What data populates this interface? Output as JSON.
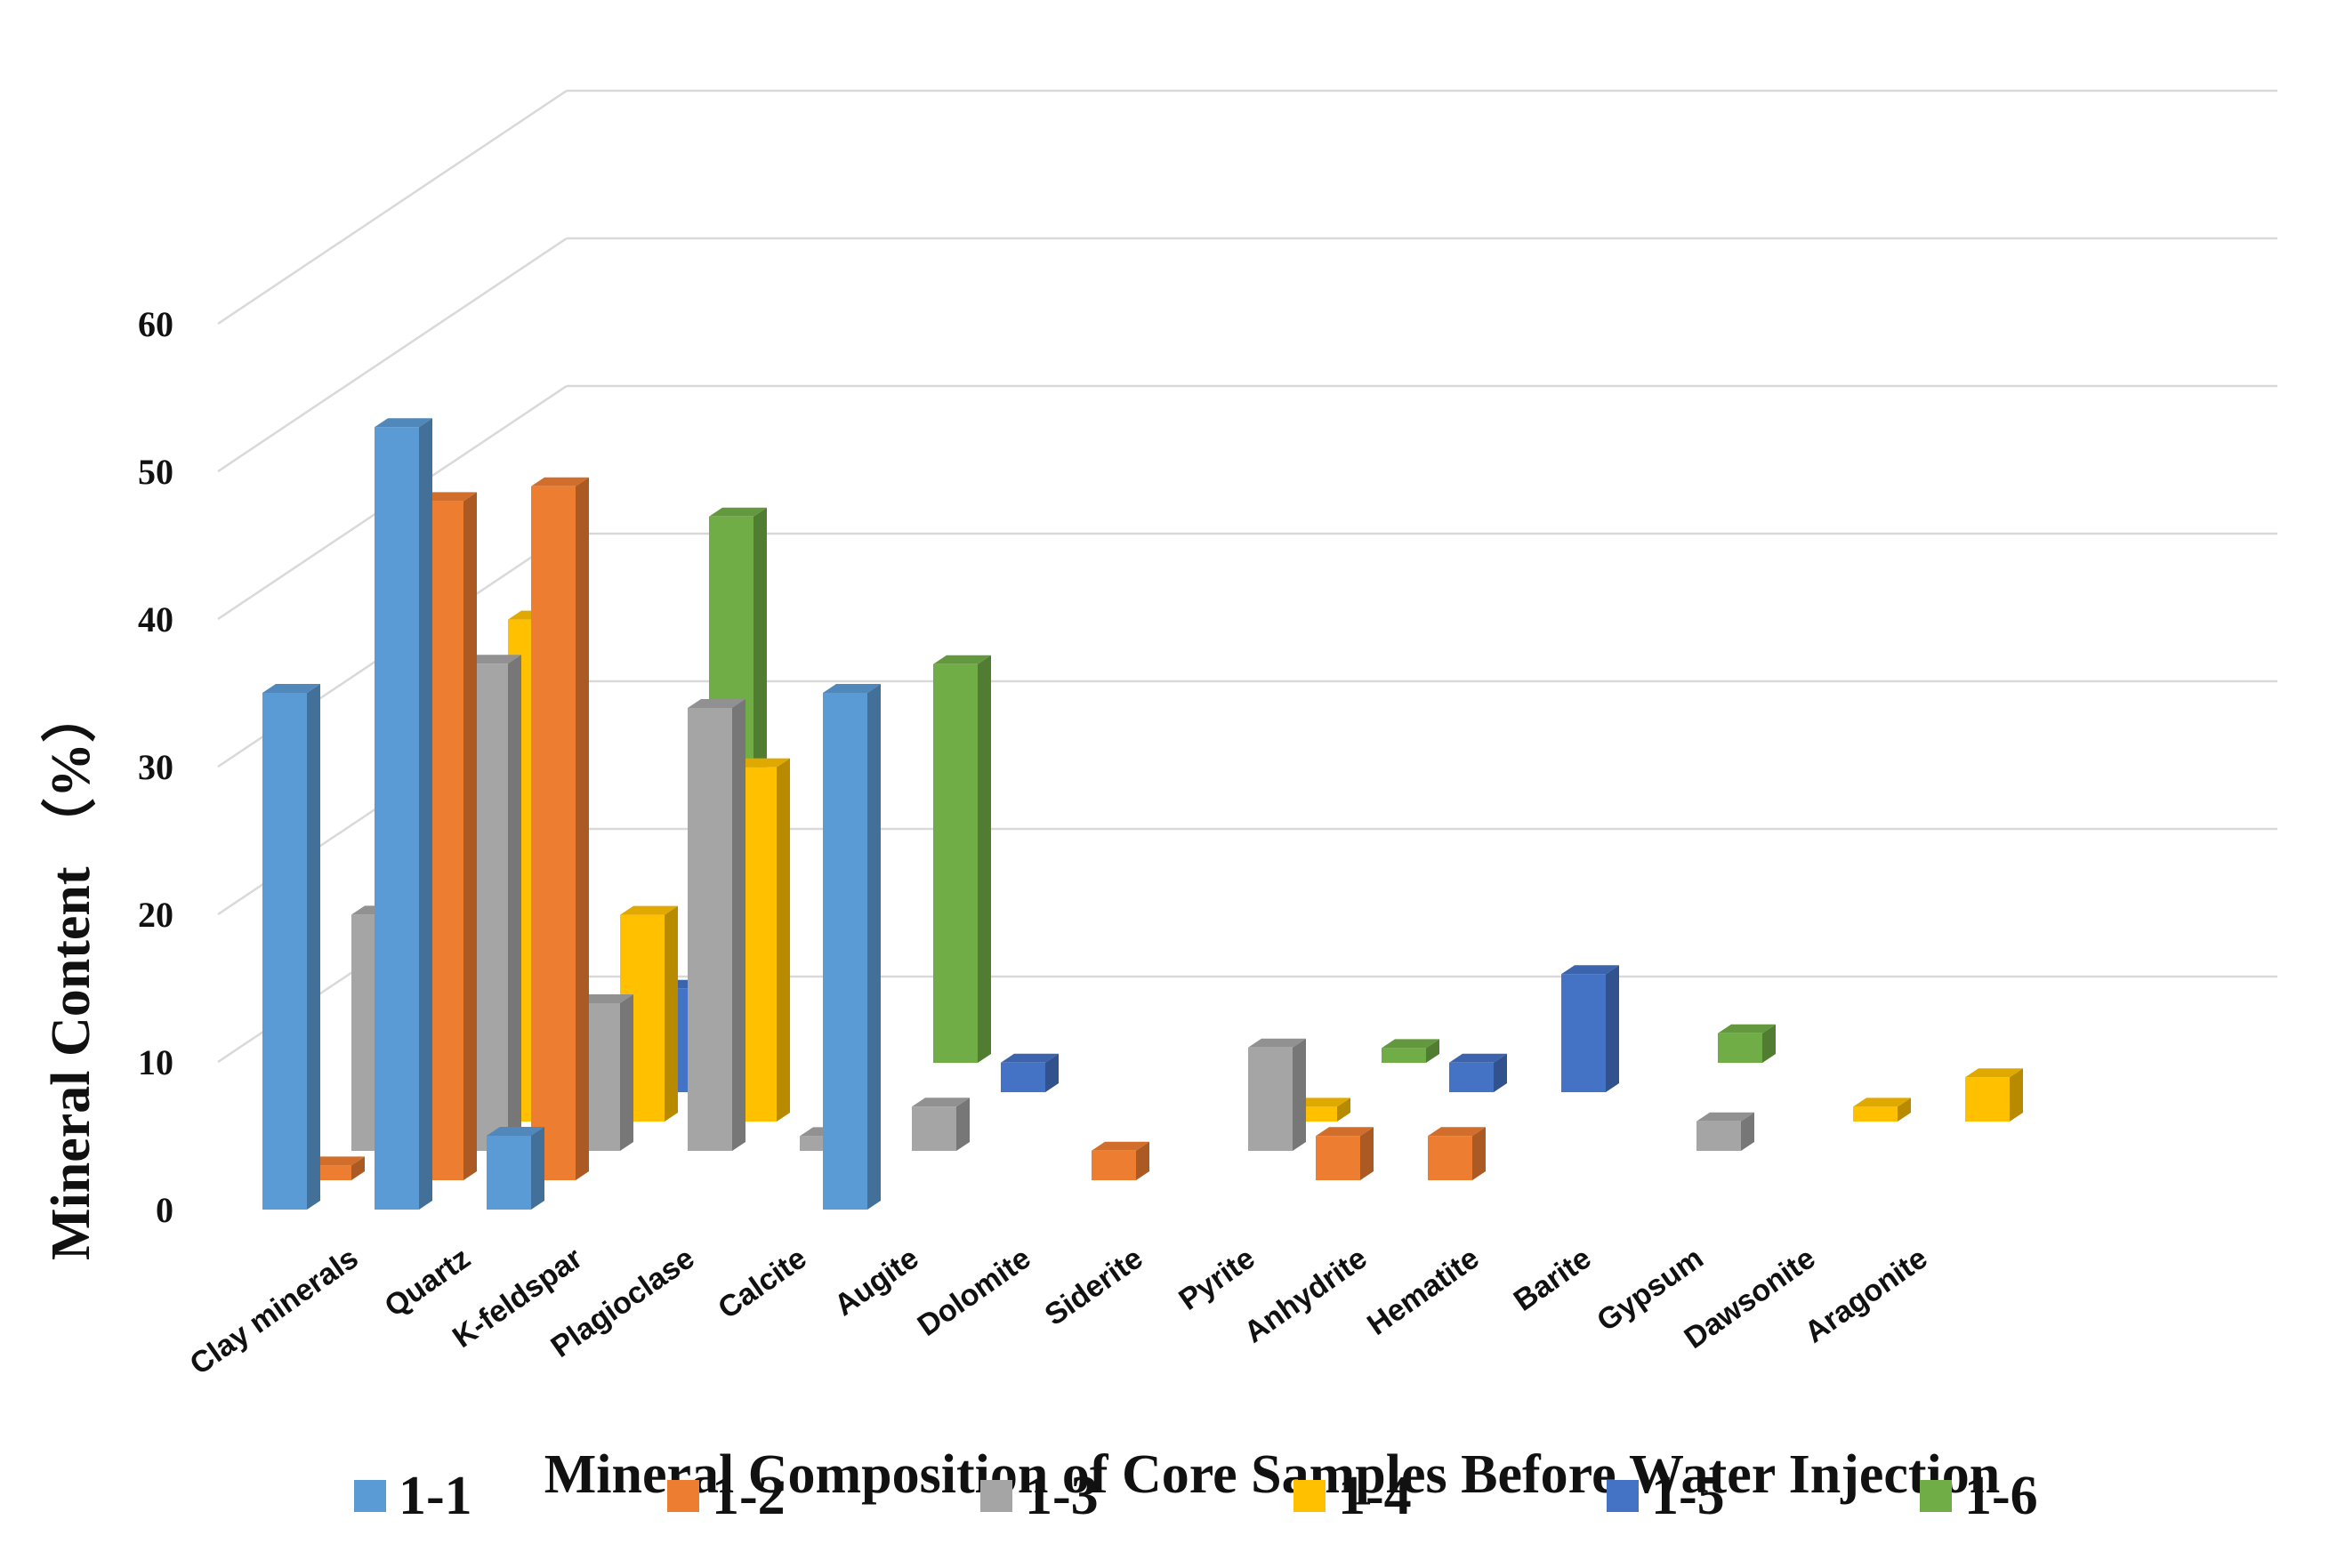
{
  "chart_data": {
    "type": "bar",
    "style": "3d-column",
    "title": "",
    "xlabel": "Mineral Composition of Core Samples Before Water Injection",
    "ylabel": "Mineral Content （%）",
    "ylim": [
      0,
      60
    ],
    "yticks": [
      0,
      10,
      20,
      30,
      40,
      50,
      60
    ],
    "grid": true,
    "legend_position": "bottom",
    "categories": [
      "Clay minerals",
      "Quartz",
      "K-feldspar",
      "Plagioclase",
      "Calcite",
      "Augite",
      "Dolomite",
      "Siderite",
      "Pyrite",
      "Anhydrite",
      "Hematite",
      "Barite",
      "Gypsum",
      "Dawsonite",
      "Aragonite"
    ],
    "series": [
      {
        "name": "1-1",
        "color": "#5B9BD5",
        "values": [
          35,
          53,
          5,
          0,
          0,
          35,
          0,
          0,
          0,
          0,
          0,
          0,
          0,
          0,
          0
        ]
      },
      {
        "name": "1-2",
        "color": "#ED7D31",
        "values": [
          1,
          46,
          47,
          0,
          0,
          0,
          0,
          2,
          0,
          3,
          3,
          0,
          0,
          0,
          0
        ]
      },
      {
        "name": "1-3",
        "color": "#A5A5A5",
        "values": [
          16,
          33,
          10,
          30,
          1,
          3,
          0,
          0,
          7,
          0,
          0,
          0,
          2,
          0,
          0
        ]
      },
      {
        "name": "1-4",
        "color": "#FFC000",
        "values": [
          0,
          34,
          14,
          24,
          0,
          0,
          0,
          0,
          1,
          0,
          0,
          0,
          0,
          1,
          3
        ]
      },
      {
        "name": "1-5",
        "color": "#4472C4",
        "values": [
          0,
          6,
          7,
          0,
          0,
          2,
          0,
          0,
          0,
          2,
          8,
          0,
          0,
          0,
          0
        ]
      },
      {
        "name": "1-6",
        "color": "#70AD47",
        "values": [
          0,
          0,
          37,
          0,
          27,
          0,
          0,
          0,
          1,
          0,
          0,
          2,
          0,
          0,
          0
        ]
      }
    ]
  }
}
